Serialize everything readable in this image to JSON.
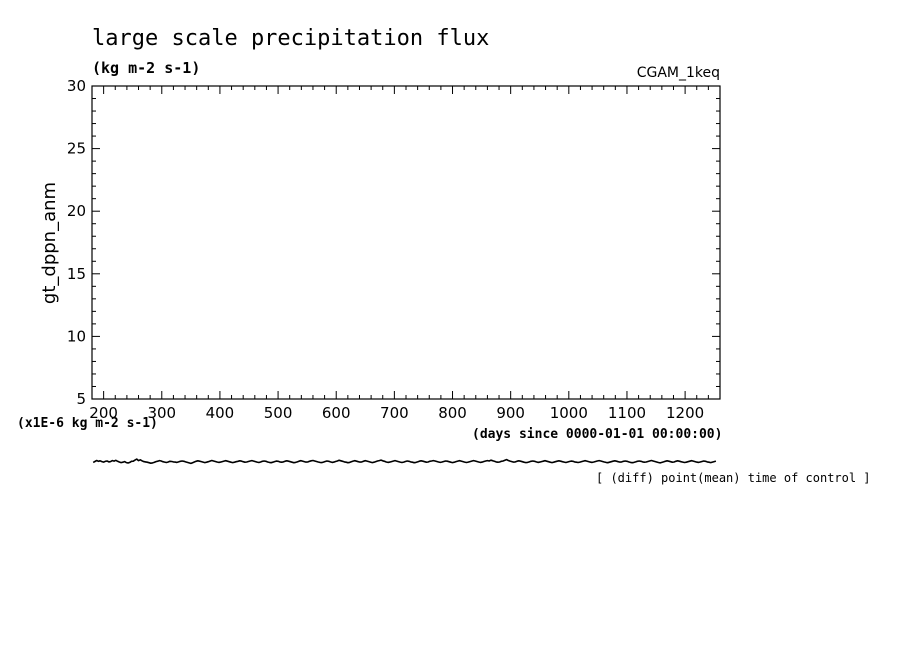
{
  "chart_data": {
    "type": "line",
    "title": "large scale precipitation flux",
    "units": "(kg m-2 s-1)",
    "run_label": "CGAM_1keq",
    "ylabel": "gt_dppn_anm",
    "y_scale_label": "(x1E-6 kg m-2 s-1)",
    "xlabel": "(days since 0000-01-01 00:00:00)",
    "footnote": "[ (diff) point(mean) time of control ]",
    "xlim": [
      180,
      1260
    ],
    "ylim": [
      5,
      30
    ],
    "x_ticks": [
      200,
      300,
      400,
      500,
      600,
      700,
      800,
      900,
      1000,
      1100,
      1200
    ],
    "y_ticks": [
      5,
      10,
      15,
      20,
      25,
      30
    ],
    "grid": false,
    "series": [
      {
        "color": "#000000",
        "x_start": 182,
        "x_step": 3,
        "values": [
          -0.06,
          0.01,
          0.09,
          0.02,
          0.06,
          0.0,
          -0.04,
          0.02,
          0.05,
          -0.02,
          0.0,
          0.08,
          0.04,
          0.1,
          0.02,
          -0.03,
          -0.08,
          -0.05,
          0.0,
          -0.08,
          -0.11,
          -0.06,
          0.02,
          0.03,
          0.12,
          0.2,
          0.08,
          0.14,
          0.06,
          0.0,
          -0.02,
          -0.05,
          -0.09,
          -0.13,
          -0.1,
          -0.06,
          0.0,
          0.03,
          0.08,
          0.05,
          -0.01,
          -0.04,
          -0.07,
          -0.03,
          0.02,
          0.01,
          -0.02,
          -0.04,
          -0.06,
          -0.02,
          0.02,
          0.05,
          0.02,
          -0.02,
          -0.06,
          -0.1,
          -0.14,
          -0.09,
          -0.03,
          0.02,
          0.06,
          0.03,
          0.0,
          -0.04,
          -0.08,
          -0.05,
          -0.01,
          0.04,
          0.09,
          0.05,
          0.01,
          -0.03,
          -0.06,
          -0.04,
          0.0,
          0.04,
          0.07,
          0.03,
          -0.01,
          -0.05,
          -0.08,
          -0.05,
          -0.01,
          0.02,
          0.06,
          0.04,
          -0.01,
          -0.05,
          -0.03,
          0.01,
          0.05,
          0.08,
          0.04,
          0.0,
          -0.04,
          -0.07,
          -0.03,
          0.02,
          0.05,
          0.02,
          -0.03,
          -0.06,
          -0.09,
          -0.05,
          0.0,
          0.04,
          0.02,
          -0.02,
          -0.05,
          -0.02,
          0.03,
          0.06,
          0.03,
          -0.01,
          -0.05,
          -0.09,
          -0.06,
          -0.02,
          0.03,
          0.07,
          0.04,
          0.0,
          -0.04,
          -0.03,
          0.02,
          0.06,
          0.09,
          0.05,
          0.01,
          -0.03,
          -0.06,
          -0.08,
          -0.04,
          0.01,
          0.05,
          0.02,
          -0.02,
          -0.06,
          -0.04,
          0.01,
          0.05,
          0.1,
          0.06,
          0.02,
          -0.02,
          -0.05,
          -0.09,
          -0.06,
          -0.01,
          0.04,
          0.07,
          0.03,
          -0.01,
          -0.04,
          -0.02,
          0.03,
          0.07,
          0.04,
          0.0,
          -0.04,
          -0.08,
          -0.05,
          0.0,
          0.05,
          0.08,
          0.12,
          0.06,
          0.02,
          -0.03,
          -0.06,
          -0.04,
          0.0,
          0.04,
          0.08,
          0.04,
          0.0,
          -0.04,
          -0.07,
          -0.04,
          0.01,
          0.05,
          0.02,
          -0.02,
          -0.05,
          -0.09,
          -0.06,
          -0.02,
          0.03,
          0.06,
          0.03,
          -0.01,
          -0.05,
          -0.03,
          0.02,
          0.05,
          0.08,
          0.05,
          0.01,
          -0.03,
          -0.06,
          -0.03,
          0.01,
          0.05,
          0.03,
          -0.01,
          -0.05,
          -0.08,
          -0.05,
          0.0,
          0.04,
          0.07,
          0.04,
          0.0,
          -0.04,
          -0.07,
          -0.04,
          0.0,
          0.04,
          0.08,
          0.05,
          0.01,
          -0.03,
          -0.06,
          -0.04,
          0.01,
          0.05,
          0.08,
          0.05,
          0.11,
          0.07,
          0.02,
          -0.02,
          -0.05,
          -0.03,
          0.02,
          0.05,
          0.1,
          0.16,
          0.09,
          0.04,
          0.0,
          -0.04,
          -0.02,
          0.03,
          0.06,
          0.03,
          -0.01,
          -0.05,
          -0.08,
          -0.06,
          -0.02,
          0.02,
          0.05,
          0.02,
          -0.02,
          -0.06,
          -0.04,
          0.0,
          0.03,
          0.07,
          0.03,
          -0.01,
          -0.05,
          -0.08,
          -0.05,
          -0.01,
          0.03,
          0.06,
          0.03,
          -0.01,
          -0.04,
          -0.07,
          -0.03,
          0.01,
          0.04,
          0.02,
          -0.02,
          -0.05,
          -0.07,
          -0.04,
          0.0,
          0.04,
          0.07,
          0.04,
          0.0,
          -0.04,
          -0.06,
          -0.03,
          0.01,
          0.05,
          0.08,
          0.05,
          0.01,
          -0.03,
          -0.06,
          -0.09,
          -0.05,
          -0.01,
          0.03,
          0.06,
          0.03,
          -0.01,
          -0.04,
          -0.02,
          0.02,
          0.05,
          0.02,
          -0.02,
          -0.06,
          -0.09,
          -0.06,
          -0.02,
          0.02,
          0.05,
          0.02,
          -0.02,
          -0.05,
          -0.03,
          0.01,
          0.05,
          0.09,
          0.05,
          0.01,
          -0.03,
          -0.07,
          -0.1,
          -0.06,
          -0.02,
          0.02,
          0.06,
          0.03,
          -0.01,
          -0.05,
          -0.03,
          0.02,
          0.06,
          0.03,
          -0.01,
          -0.04,
          -0.07,
          -0.05,
          -0.01,
          0.03,
          0.07,
          0.04,
          0.0,
          -0.04,
          -0.06,
          -0.03,
          0.01,
          0.05,
          0.02,
          -0.02,
          -0.05,
          -0.08,
          -0.04,
          0.0,
          0.04
        ]
      }
    ]
  }
}
